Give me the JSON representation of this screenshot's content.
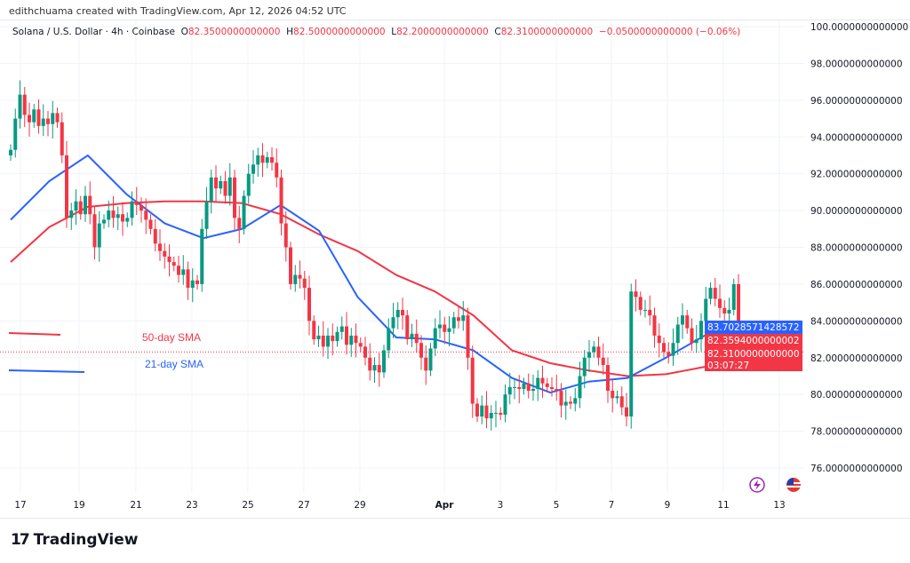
{
  "credit": "edithchuama created with TradingView.com, Apr 12, 2026 04:52 UTC",
  "legend": {
    "symbol": "Solana / U.S. Dollar · 4h · Coinbase",
    "o_label": "O",
    "o": "82.3500000000000",
    "h_label": "H",
    "h": "82.5000000000000",
    "l_label": "L",
    "l": "82.2000000000000",
    "c_label": "C",
    "c": "82.3100000000000",
    "change": "−0.0500000000000 (−0.06%)"
  },
  "colors": {
    "up": "#089981",
    "down": "#f23645",
    "sma21": "#2962ff",
    "sma50": "#f23645"
  },
  "logo": "TradingView",
  "icons": [
    "lightning-icon",
    "us-flag-icon"
  ],
  "chart_data": {
    "type": "candlestick",
    "interval": "4h",
    "ylim": [
      75,
      100.5
    ],
    "y_ticks": [
      "100.0000000000000",
      "98.0000000000000",
      "96.0000000000000",
      "94.0000000000000",
      "92.0000000000000",
      "90.0000000000000",
      "88.0000000000000",
      "86.0000000000000",
      "84.0000000000000",
      "82.0000000000000",
      "80.0000000000000",
      "78.0000000000000",
      "76.0000000000000"
    ],
    "y_tick_values": [
      100,
      98,
      96,
      94,
      92,
      90,
      88,
      86,
      84,
      82,
      80,
      78,
      76
    ],
    "x_ticks": [
      "17",
      "19",
      "21",
      "23",
      "25",
      "27",
      "29",
      "Apr",
      "3",
      "5",
      "7",
      "9",
      "11",
      "13"
    ],
    "grid": true,
    "closes": [
      93.3,
      95.0,
      96.3,
      95.2,
      94.8,
      95.5,
      94.6,
      95.0,
      94.7,
      95.3,
      94.8,
      93.0,
      89.6,
      90.0,
      90.5,
      89.8,
      90.8,
      89.8,
      88.0,
      89.3,
      89.5,
      90.0,
      89.6,
      89.8,
      89.4,
      89.6,
      90.5,
      90.3,
      90.0,
      89.5,
      89.0,
      88.2,
      87.8,
      87.5,
      87.2,
      87.0,
      86.5,
      86.8,
      85.8,
      86.2,
      86.0,
      89.0,
      90.5,
      91.8,
      91.2,
      91.6,
      90.8,
      91.8,
      89.6,
      89.0,
      90.8,
      92.0,
      92.5,
      93.0,
      92.6,
      92.9,
      92.6,
      91.8,
      89.3,
      88.0,
      86.0,
      86.5,
      86.3,
      85.8,
      84.0,
      83.0,
      83.2,
      82.6,
      83.2,
      82.9,
      83.4,
      83.7,
      82.7,
      83.2,
      82.8,
      82.6,
      82.0,
      81.3,
      81.6,
      81.2,
      82.4,
      83.6,
      84.2,
      84.6,
      84.3,
      83.0,
      83.3,
      82.8,
      82.0,
      81.3,
      82.5,
      83.6,
      83.8,
      83.4,
      83.6,
      84.2,
      84.0,
      84.3,
      82.0,
      79.5,
      78.8,
      79.4,
      78.7,
      79.0,
      79.0,
      78.9,
      80.0,
      80.4,
      80.4,
      80.3,
      80.6,
      80.2,
      80.3,
      80.9,
      80.6,
      80.4,
      80.3,
      80.2,
      79.4,
      79.6,
      79.5,
      79.8,
      81.0,
      82.0,
      82.3,
      82.6,
      82.0,
      81.6,
      80.2,
      79.8,
      79.9,
      79.3,
      78.8,
      85.6,
      85.3,
      84.6,
      84.6,
      84.3,
      83.2,
      82.8,
      82.3,
      82.1,
      82.8,
      83.8,
      84.3,
      83.6,
      82.8,
      83.0,
      84.0,
      85.2,
      85.8,
      85.2,
      84.7,
      84.4,
      84.6,
      86.0,
      82.35,
      82.31
    ],
    "series": [
      {
        "name": "21-day SMA",
        "values": [
          89.5,
          91.6,
          93.0,
          90.9,
          89.3,
          88.5,
          89.0,
          90.3,
          88.9,
          85.3,
          83.1,
          83.0,
          82.4,
          80.9,
          80.1,
          80.7,
          80.9,
          82.0,
          83.2,
          83.7
        ]
      },
      {
        "name": "50-day SMA",
        "values": [
          87.2,
          89.1,
          90.2,
          90.4,
          90.5,
          90.5,
          90.4,
          89.8,
          88.7,
          87.8,
          86.5,
          85.6,
          84.3,
          82.4,
          81.7,
          81.3,
          81.0,
          81.1,
          81.5,
          82.36
        ]
      }
    ],
    "price_labels": [
      {
        "text": "83.7028571428572",
        "value": 83.7028571428572,
        "color": "#2962ff"
      },
      {
        "text": "82.3594000000002",
        "value": 82.3594000000002,
        "color": "#f23645"
      },
      {
        "text": "82.3100000000000",
        "value": 82.31,
        "color": "#f23645",
        "countdown": "03:07:27"
      }
    ]
  }
}
